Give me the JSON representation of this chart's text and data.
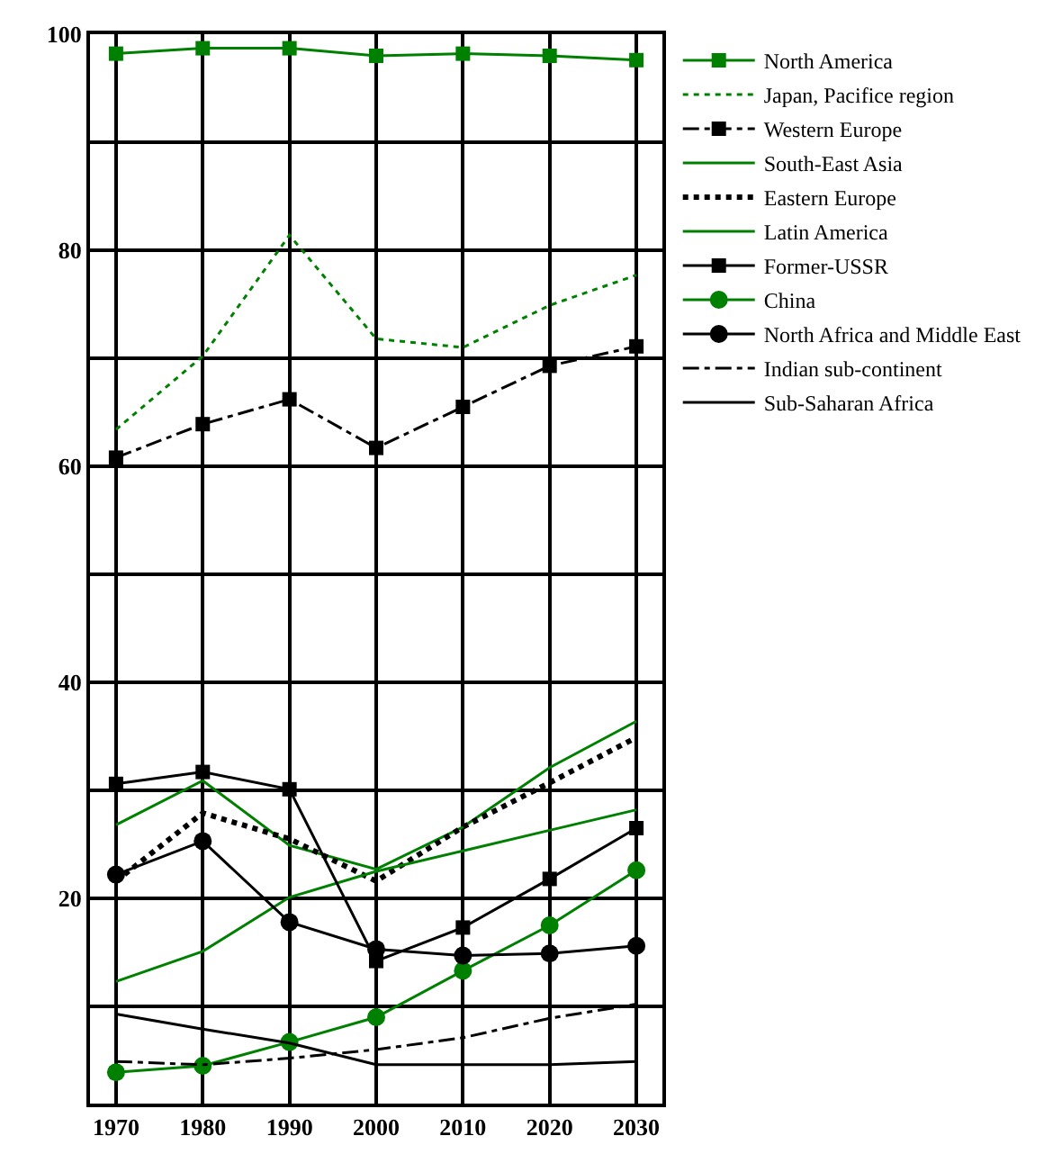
{
  "chart_data": {
    "type": "line",
    "x": [
      1970,
      1980,
      1990,
      2000,
      2010,
      2020,
      2030
    ],
    "xlim": [
      1967,
      2033
    ],
    "xticks": [
      1970,
      1980,
      1990,
      2000,
      2010,
      2020,
      2030
    ],
    "ylim": [
      1,
      100
    ],
    "yticks": [
      {
        "value": 10,
        "label": null
      },
      20,
      {
        "value": 30,
        "label": null
      },
      40,
      {
        "value": 50,
        "label": null
      },
      60,
      {
        "value": 70,
        "label": null
      },
      80,
      {
        "value": 90,
        "label": null
      },
      100
    ],
    "grid": true,
    "legend": "right",
    "series": [
      {
        "name": "North America",
        "color": "#008000",
        "marker": "square",
        "line_style": "solid",
        "values": [
          98.2,
          98.7,
          98.7,
          98.0,
          98.2,
          98.0,
          97.6
        ]
      },
      {
        "name": "Japan, Pacifice region",
        "color": "#008000",
        "marker": "none",
        "line_style": "dotted",
        "values": [
          63.4,
          70.2,
          81.4,
          71.8,
          71.0,
          74.9,
          77.7
        ]
      },
      {
        "name": "Western Europe",
        "color": "#000000",
        "marker": "square",
        "line_style": "dashed",
        "values": [
          60.8,
          63.9,
          66.2,
          61.7,
          65.5,
          69.3,
          71.1
        ]
      },
      {
        "name": "South-East Asia",
        "color": "#008000",
        "marker": "none",
        "line_style": "solid",
        "values": [
          26.8,
          30.9,
          24.9,
          22.7,
          26.6,
          32.1,
          36.4
        ]
      },
      {
        "name": "Eastern Europe",
        "color": "#000000",
        "marker": "none",
        "line_style": "dotted",
        "values": [
          21.6,
          27.9,
          25.5,
          21.6,
          26.6,
          30.7,
          34.9
        ]
      },
      {
        "name": "Latin America",
        "color": "#008000",
        "marker": "none",
        "line_style": "solid",
        "values": [
          12.3,
          15.1,
          20.1,
          22.5,
          24.4,
          26.3,
          28.2
        ]
      },
      {
        "name": "Former-USSR",
        "color": "#000000",
        "marker": "square",
        "line_style": "solid",
        "values": [
          30.6,
          31.7,
          30.1,
          14.2,
          17.3,
          21.8,
          26.5
        ]
      },
      {
        "name": "China",
        "color": "#008000",
        "marker": "circle",
        "line_style": "solid",
        "values": [
          3.9,
          4.5,
          6.7,
          9.0,
          13.3,
          17.5,
          22.6
        ]
      },
      {
        "name": "North Africa and Middle East",
        "color": "#000000",
        "marker": "circle",
        "line_style": "solid",
        "values": [
          22.2,
          25.3,
          17.8,
          15.3,
          14.7,
          14.9,
          15.6
        ]
      },
      {
        "name": "Indian sub-continent",
        "color": "#000000",
        "marker": "none",
        "line_style": "dashed",
        "values": [
          4.9,
          4.6,
          5.2,
          6.0,
          7.1,
          8.9,
          10.2
        ]
      },
      {
        "name": "Sub-Saharan Africa",
        "color": "#000000",
        "marker": "none",
        "line_style": "solid",
        "values": [
          9.3,
          7.9,
          6.6,
          4.6,
          4.6,
          4.6,
          4.9
        ]
      }
    ]
  }
}
